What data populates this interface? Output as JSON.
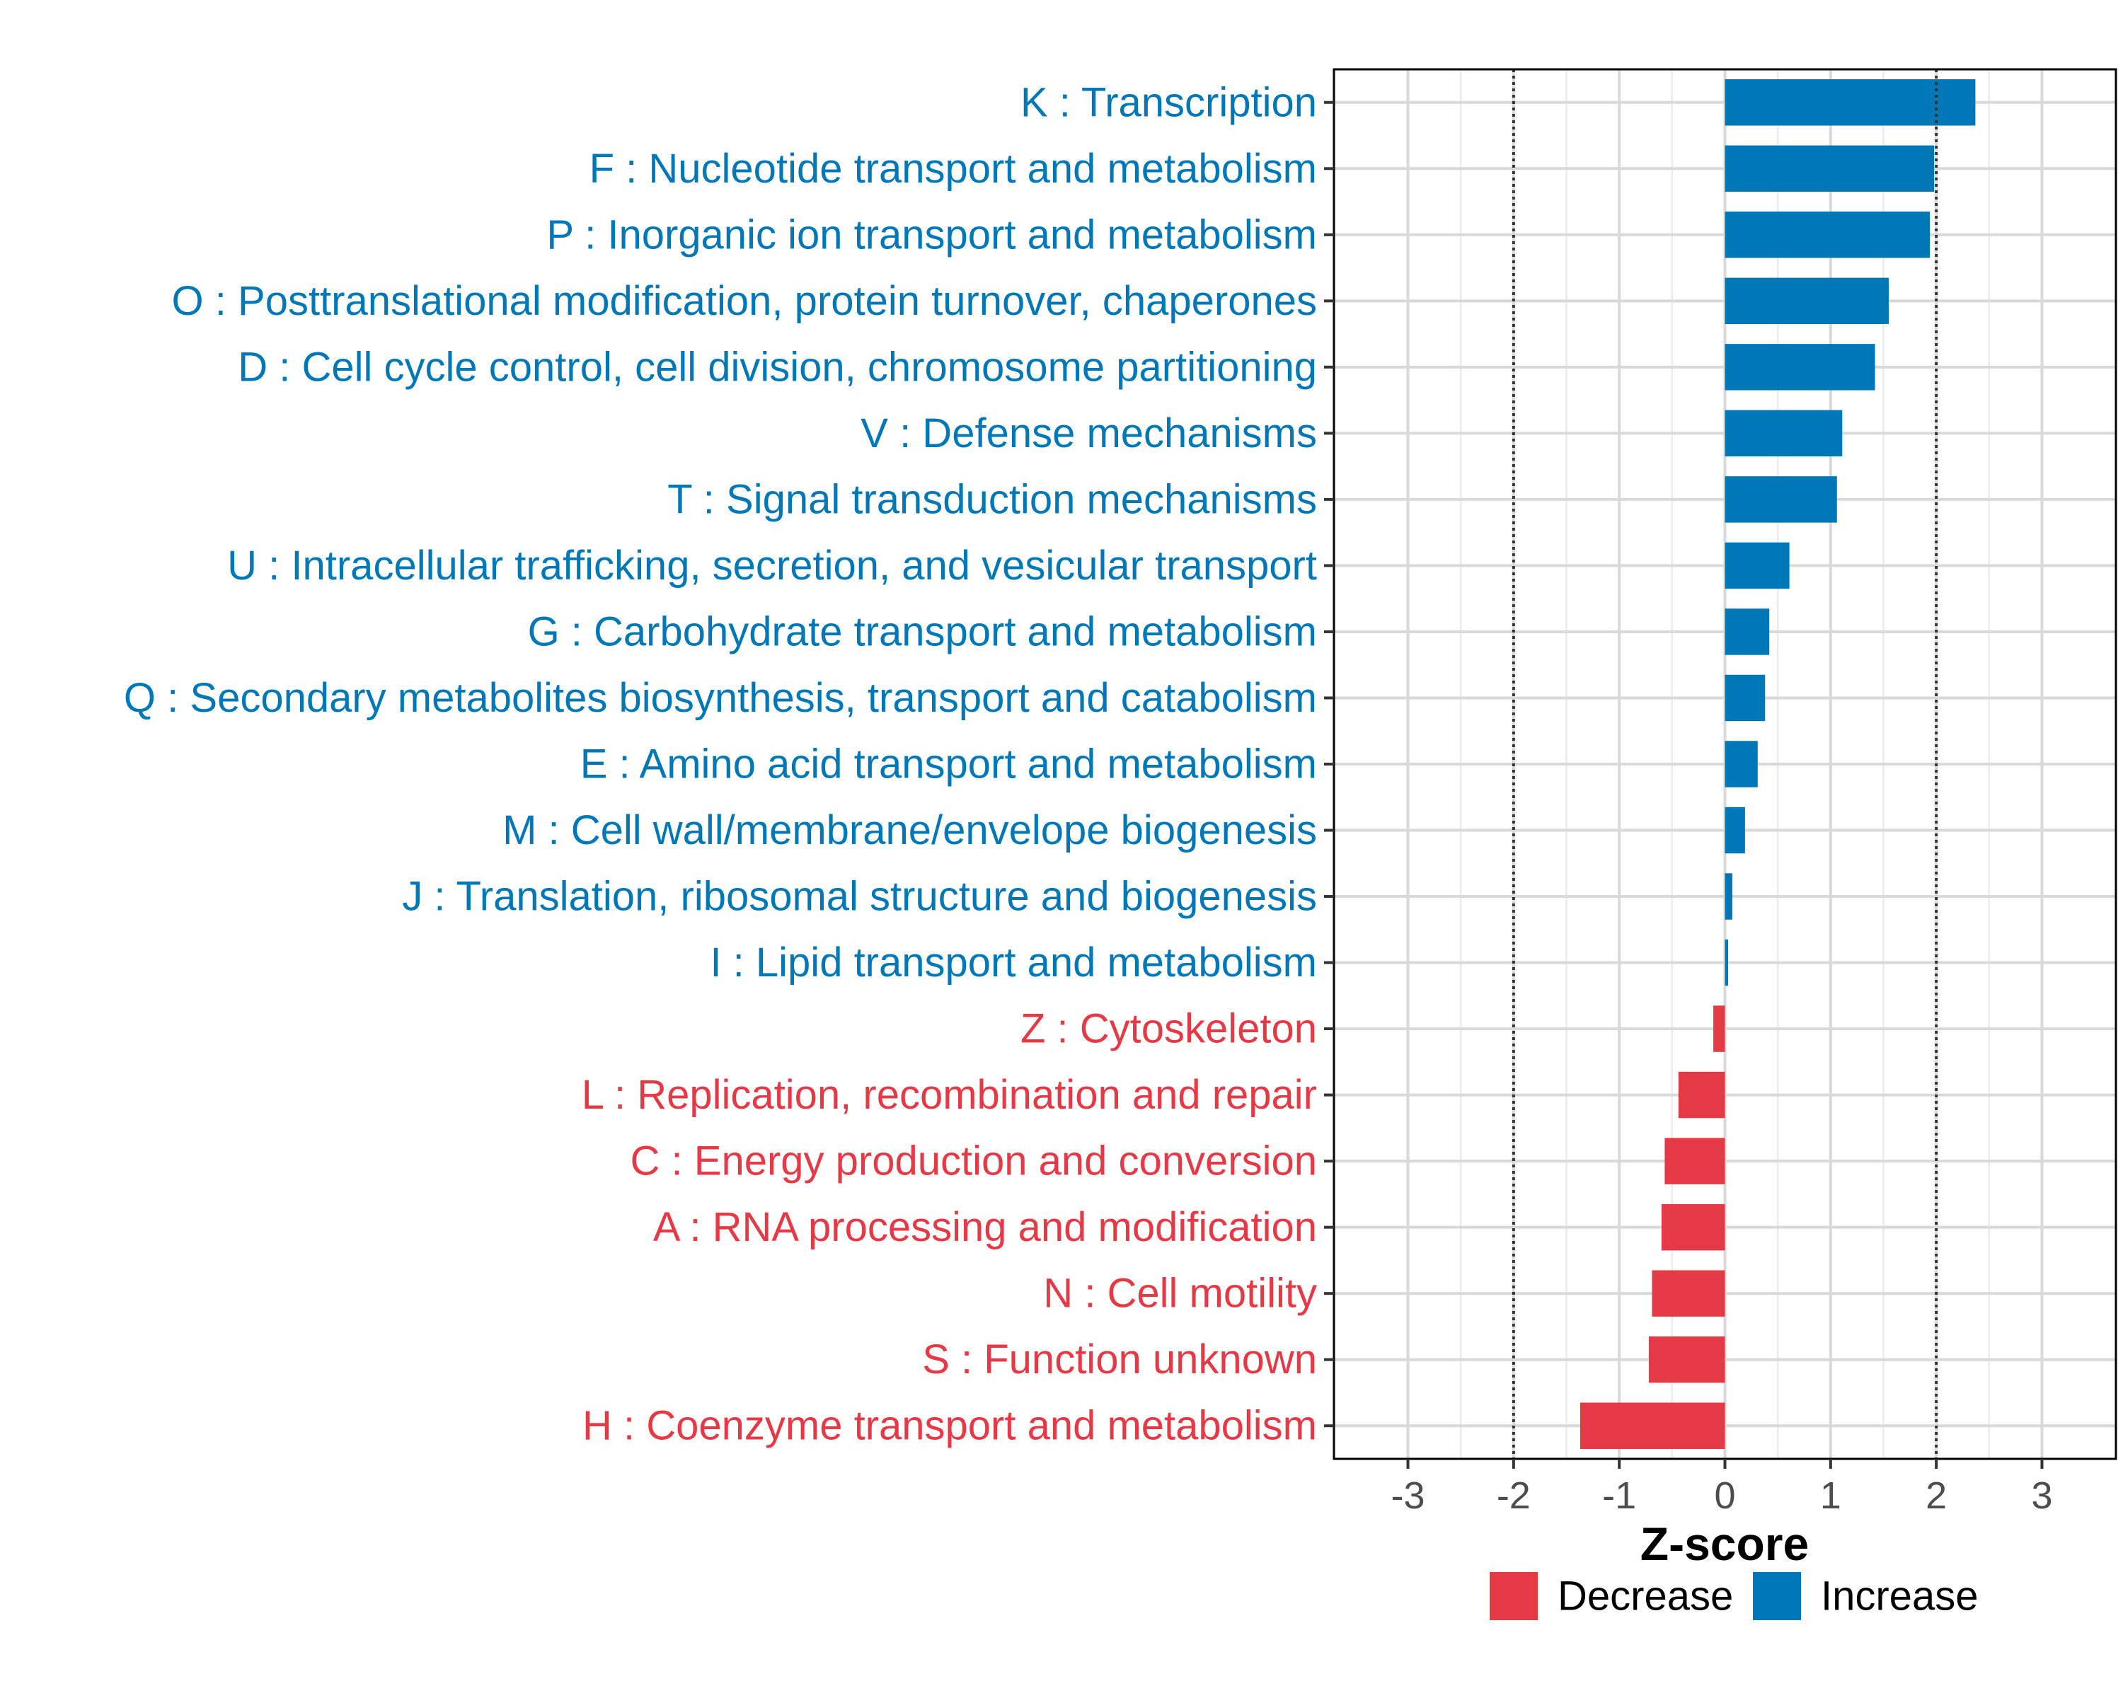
{
  "chart_data": {
    "type": "bar",
    "orientation": "horizontal",
    "title": "",
    "xlabel": "Z-score",
    "ylabel": "",
    "xlim": [
      -3.7,
      3.7
    ],
    "x_ticks": [
      -3,
      -2,
      -1,
      0,
      1,
      2,
      3
    ],
    "reference_lines": [
      -2,
      2
    ],
    "grid": true,
    "legend_position": "bottom",
    "colors": {
      "Decrease": "#E63946",
      "Increase": "#0077B6"
    },
    "legend": [
      {
        "name": "Decrease",
        "color": "#E63946"
      },
      {
        "name": "Increase",
        "color": "#0077B6"
      }
    ],
    "categories": [
      "K : Transcription",
      "F : Nucleotide transport and metabolism",
      "P : Inorganic ion transport and metabolism",
      "O : Posttranslational modification, protein turnover, chaperones",
      "D : Cell cycle control, cell division, chromosome partitioning",
      "V : Defense mechanisms",
      "T : Signal transduction mechanisms",
      "U : Intracellular trafficking, secretion, and vesicular transport",
      "G : Carbohydrate transport and metabolism",
      "Q : Secondary metabolites biosynthesis, transport and catabolism",
      "E : Amino acid transport and metabolism",
      "M : Cell wall/membrane/envelope biogenesis",
      "J : Translation, ribosomal structure and biogenesis",
      "I : Lipid transport and metabolism",
      "Z : Cytoskeleton",
      "L : Replication, recombination and repair",
      "C : Energy production and conversion",
      "A : RNA processing and modification",
      "N : Cell motility",
      "S : Function unknown",
      "H : Coenzyme transport and metabolism"
    ],
    "values": [
      2.37,
      1.98,
      1.94,
      1.55,
      1.42,
      1.11,
      1.06,
      0.61,
      0.42,
      0.38,
      0.31,
      0.19,
      0.07,
      0.03,
      -0.11,
      -0.44,
      -0.57,
      -0.6,
      -0.69,
      -0.72,
      -1.37
    ],
    "groups": [
      "Increase",
      "Increase",
      "Increase",
      "Increase",
      "Increase",
      "Increase",
      "Increase",
      "Increase",
      "Increase",
      "Increase",
      "Increase",
      "Increase",
      "Increase",
      "Increase",
      "Decrease",
      "Decrease",
      "Decrease",
      "Decrease",
      "Decrease",
      "Decrease",
      "Decrease"
    ]
  }
}
